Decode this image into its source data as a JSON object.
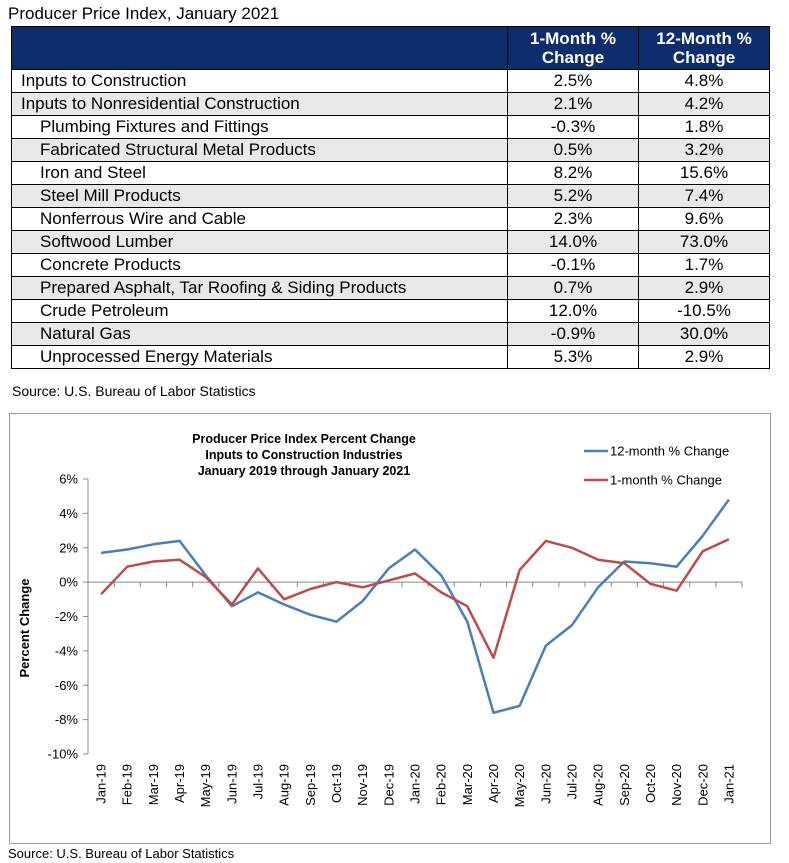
{
  "table_title": "Producer Price Index, January 2021",
  "table": {
    "headers": [
      "",
      "1-Month % Change",
      "12-Month % Change"
    ],
    "header_lines": [
      [
        "1-Month %",
        "Change"
      ],
      [
        "12-Month %",
        "Change"
      ]
    ],
    "rows": [
      {
        "name": "Inputs to Construction",
        "m1": "2.5%",
        "m12": "4.8%",
        "indent": false
      },
      {
        "name": "Inputs to Nonresidential Construction",
        "m1": "2.1%",
        "m12": "4.2%",
        "indent": false
      },
      {
        "name": "Plumbing Fixtures and Fittings",
        "m1": "-0.3%",
        "m12": "1.8%",
        "indent": true
      },
      {
        "name": "Fabricated Structural Metal Products",
        "m1": "0.5%",
        "m12": "3.2%",
        "indent": true
      },
      {
        "name": "Iron and Steel",
        "m1": "8.2%",
        "m12": "15.6%",
        "indent": true
      },
      {
        "name": "Steel Mill Products",
        "m1": "5.2%",
        "m12": "7.4%",
        "indent": true
      },
      {
        "name": "Nonferrous Wire and Cable",
        "m1": "2.3%",
        "m12": "9.6%",
        "indent": true
      },
      {
        "name": "Softwood Lumber",
        "m1": "14.0%",
        "m12": "73.0%",
        "indent": true
      },
      {
        "name": "Concrete Products",
        "m1": "-0.1%",
        "m12": "1.7%",
        "indent": true
      },
      {
        "name": "Prepared Asphalt, Tar Roofing & Siding Products",
        "m1": "0.7%",
        "m12": "2.9%",
        "indent": true
      },
      {
        "name": "Crude Petroleum",
        "m1": "12.0%",
        "m12": "-10.5%",
        "indent": true
      },
      {
        "name": "Natural Gas",
        "m1": "-0.9%",
        "m12": "30.0%",
        "indent": true
      },
      {
        "name": "Unprocessed Energy Materials",
        "m1": "5.3%",
        "m12": "2.9%",
        "indent": true
      }
    ],
    "header_color": "#0d2d6c",
    "row_colors": [
      "#ffffff",
      "#e8e8e8"
    ]
  },
  "table_source": "Source: U.S. Bureau of Labor Statistics",
  "chart_source": "Source: U.S. Bureau of Labor Statistics",
  "chart_data": {
    "type": "line",
    "title_lines": [
      "Producer Price Index Percent Change",
      "Inputs to Construction Industries",
      "January 2019 through January 2021"
    ],
    "ylabel": "Percent Change",
    "xlabel": "",
    "ylim": [
      -10,
      6
    ],
    "ytick_step": 2,
    "yticks": [
      "6%",
      "4%",
      "2%",
      "0%",
      "-2%",
      "-4%",
      "-6%",
      "-8%",
      "-10%"
    ],
    "legend_position": "top-right",
    "grid": false,
    "categories": [
      "Jan-19",
      "Feb-19",
      "Mar-19",
      "Apr-19",
      "May-19",
      "Jun-19",
      "Jul-19",
      "Aug-19",
      "Sep-19",
      "Oct-19",
      "Nov-19",
      "Dec-19",
      "Jan-20",
      "Feb-20",
      "Mar-20",
      "Apr-20",
      "May-20",
      "Jun-20",
      "Jul-20",
      "Aug-20",
      "Sep-20",
      "Oct-20",
      "Nov-20",
      "Dec-20",
      "Jan-21"
    ],
    "series": [
      {
        "name": "12-month % Change",
        "color": "#4a7ebb",
        "values": [
          1.7,
          1.9,
          2.2,
          2.4,
          0.4,
          -1.4,
          -0.6,
          -1.3,
          -1.9,
          -2.3,
          -1.1,
          0.8,
          1.9,
          0.4,
          -2.3,
          -7.6,
          -7.2,
          -3.7,
          -2.5,
          -0.3,
          1.2,
          1.1,
          0.9,
          2.7,
          4.8
        ]
      },
      {
        "name": "1-month % Change",
        "color": "#be4b48",
        "values": [
          -0.7,
          0.9,
          1.2,
          1.3,
          0.3,
          -1.3,
          0.8,
          -1.0,
          -0.4,
          0.0,
          -0.3,
          0.1,
          0.5,
          -0.6,
          -1.4,
          -4.4,
          0.7,
          2.4,
          2.0,
          1.3,
          1.1,
          -0.1,
          -0.5,
          1.8,
          2.5
        ]
      }
    ]
  }
}
